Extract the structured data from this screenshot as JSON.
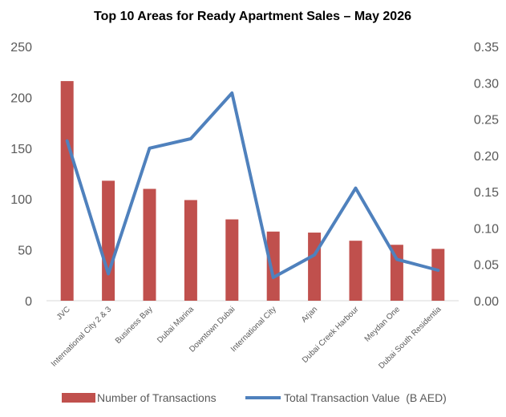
{
  "chart_data": {
    "type": "bar",
    "title": "Top 10 Areas for Ready Apartment Sales – May 2026",
    "categories": [
      "JVC",
      "International City 2 & 3",
      "Business Bay",
      "Dubai Marina",
      "Downtown Dubai",
      "International City",
      "Arjan",
      "Dubai Creek Harbour",
      "Meydan One",
      "Dubai South Residentia"
    ],
    "series": [
      {
        "name": "Number of Transactions",
        "type": "bar",
        "axis": "left",
        "color": "#C0504D",
        "values": [
          216,
          118,
          110,
          99,
          80,
          68,
          67,
          59,
          55,
          51
        ]
      },
      {
        "name": "Total Transaction Value  (B AED)",
        "type": "line",
        "axis": "right",
        "color": "#4F81BD",
        "values": [
          0.22,
          0.037,
          0.21,
          0.223,
          0.286,
          0.032,
          0.063,
          0.155,
          0.057,
          0.042
        ]
      }
    ],
    "y_left": {
      "min": 0,
      "max": 250,
      "ticks": [
        "0",
        "50",
        "100",
        "150",
        "200",
        "250"
      ]
    },
    "y_right": {
      "min": 0,
      "max": 0.35,
      "ticks": [
        "0.00",
        "0.05",
        "0.10",
        "0.15",
        "0.20",
        "0.25",
        "0.30",
        "0.35"
      ]
    },
    "grid": false,
    "legend_position": "bottom"
  }
}
